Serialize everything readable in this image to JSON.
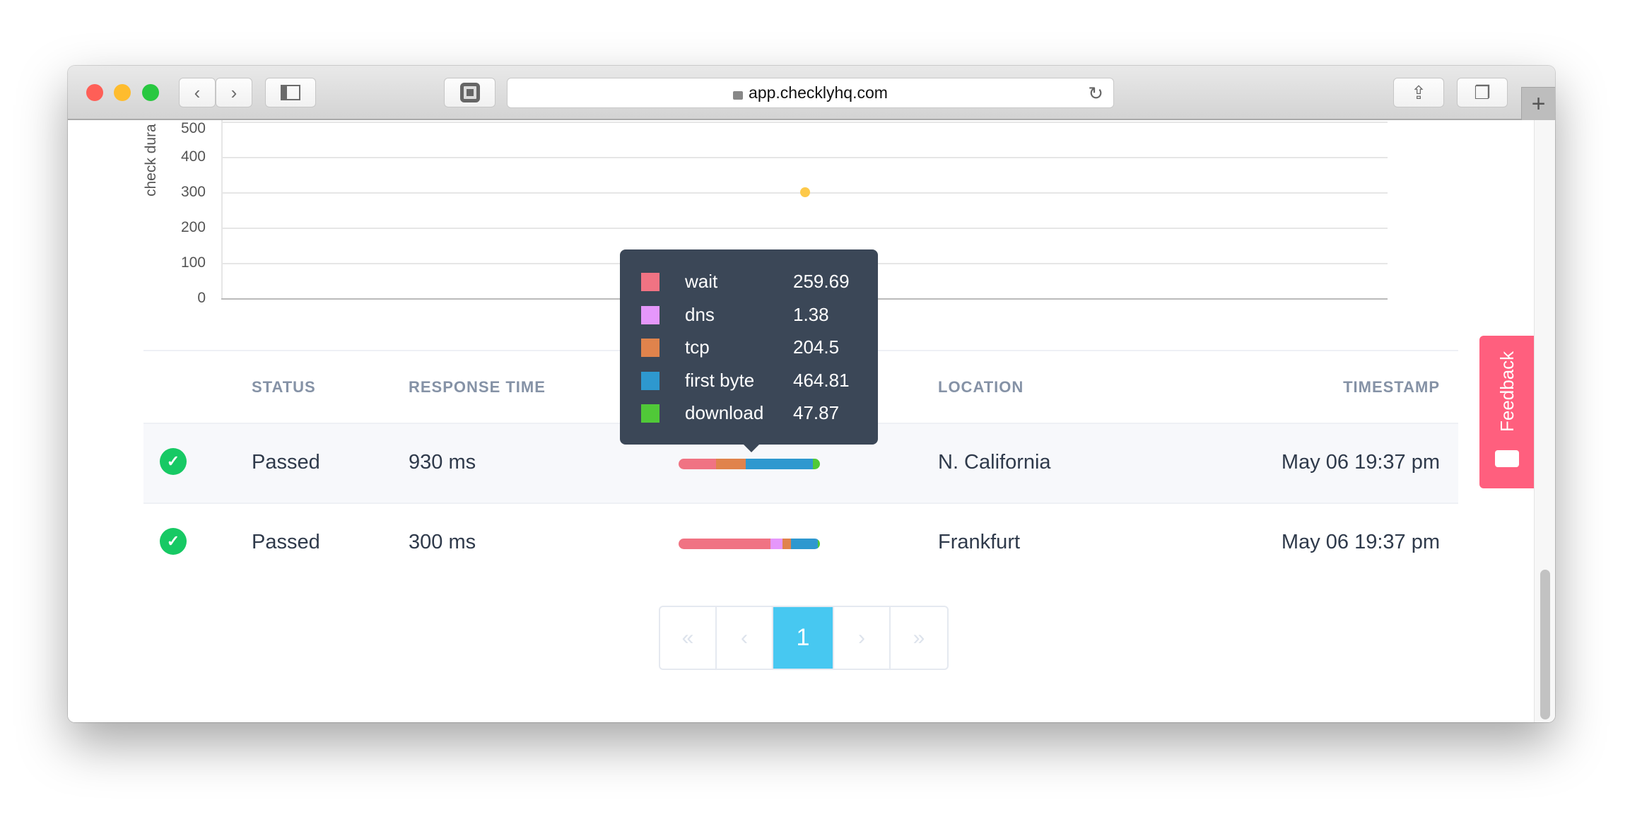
{
  "browser": {
    "url": "app.checklyhq.com",
    "lights": [
      "#fe5f57",
      "#febc2e",
      "#28c840"
    ]
  },
  "chart_data": {
    "type": "scatter",
    "ylabel": "check dura",
    "yticks": [
      "500",
      "400",
      "300",
      "200",
      "100",
      "0"
    ],
    "ylim": [
      0,
      500
    ],
    "grid": true,
    "points": [
      {
        "y": 300,
        "color": "#fdc94a"
      }
    ]
  },
  "table": {
    "headers": {
      "status": "STATUS",
      "response_time": "RESPONSE TIME",
      "location": "LOCATION",
      "timestamp": "TIMESTAMP"
    },
    "rows": [
      {
        "status": "Passed",
        "response_time": "930 ms",
        "location": "N. California",
        "timestamp": "May 06 19:37 pm",
        "timing_pct": {
          "wait": 26.5,
          "dns": 0.1,
          "tcp": 20.9,
          "first_byte": 47.5,
          "download": 4.9
        }
      },
      {
        "status": "Passed",
        "response_time": "300 ms",
        "location": "Frankfurt",
        "timestamp": "May 06 19:37 pm",
        "timing_pct": {
          "wait": 65,
          "dns": 8.5,
          "tcp": 6,
          "first_byte": 19.2,
          "download": 1.3
        }
      }
    ]
  },
  "tooltip": {
    "items": [
      {
        "label": "wait",
        "value": "259.69",
        "color": "#f07383"
      },
      {
        "label": "dns",
        "value": "1.38",
        "color": "#e597fb"
      },
      {
        "label": "tcp",
        "value": "204.5",
        "color": "#e0834c"
      },
      {
        "label": "first byte",
        "value": "464.81",
        "color": "#2e98cf"
      },
      {
        "label": "download",
        "value": "47.87",
        "color": "#50c938"
      }
    ]
  },
  "pagination": {
    "first": "«",
    "prev": "‹",
    "current": "1",
    "next": "›",
    "last": "»",
    "active_color": "#47c8f1"
  },
  "feedback": {
    "label": "Feedback",
    "color": "#ff5f7e"
  }
}
